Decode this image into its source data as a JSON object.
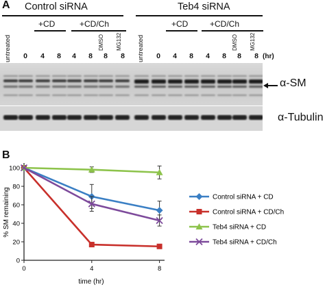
{
  "panel_a": {
    "letter": "A",
    "group1_title": "Control siRNA",
    "group2_title": "Teb4 siRNA",
    "g1_sub_cd": "+CD",
    "g1_sub_cdch": "+CD/Ch",
    "g2_sub_cd": "+CD",
    "g2_sub_cdch": "+CD/Ch",
    "lanes_g1": [
      "untreated",
      "0",
      "4",
      "8",
      "4",
      "8",
      "DMSO",
      "MG132"
    ],
    "lanes_g2": [
      "untreated",
      "0",
      "4",
      "8",
      "4",
      "8",
      "DMSO",
      "MG132"
    ],
    "lane_numbers_under_rot": [
      "8",
      "8"
    ],
    "unit": "(hr)",
    "antibody1": "α-SM",
    "antibody2": "α-Tubulin"
  },
  "panel_b": {
    "letter": "B"
  },
  "chart_data": {
    "type": "line",
    "xlabel": "time (hr)",
    "ylabel": "% SM remaining",
    "x": [
      0,
      4,
      8
    ],
    "xticks": [
      0,
      4,
      8
    ],
    "yticks": [
      0,
      20,
      40,
      60,
      80,
      100
    ],
    "xlim": [
      0,
      8.3
    ],
    "ylim": [
      0,
      100
    ],
    "grid": false,
    "legend_position": "right",
    "series": [
      {
        "name": "Control siRNA + CD",
        "values": [
          100,
          69,
          54
        ],
        "err": [
          0,
          13,
          10
        ],
        "color": "#3a7fc4",
        "marker": "diamond"
      },
      {
        "name": "Control siRNA + CD/Ch",
        "values": [
          100,
          17,
          15
        ],
        "err": [
          0,
          0,
          0
        ],
        "color": "#c8302b",
        "marker": "square"
      },
      {
        "name": "Teb4 siRNA + CD",
        "values": [
          100,
          98,
          95
        ],
        "err": [
          0,
          3,
          7
        ],
        "color": "#8dc34b",
        "marker": "triangle"
      },
      {
        "name": "Teb4 siRNA + CD/Ch",
        "values": [
          100,
          61,
          43
        ],
        "err": [
          0,
          8,
          6
        ],
        "color": "#7d4a9b",
        "marker": "x"
      }
    ]
  }
}
